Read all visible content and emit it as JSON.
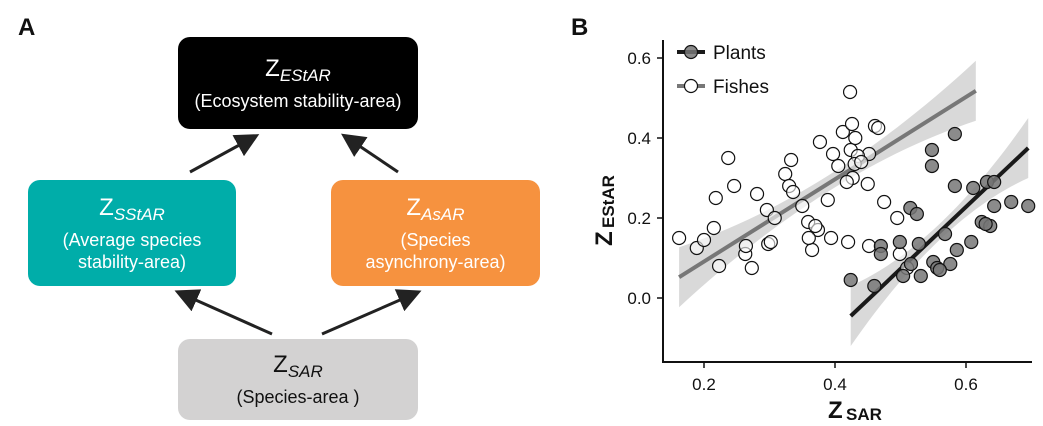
{
  "panels": {
    "a": "A",
    "b": "B"
  },
  "diagram": {
    "ecosystem": {
      "z": "Z",
      "sub": "EStAR",
      "desc": "(Ecosystem stability-area)",
      "color": "#000000"
    },
    "species_stability": {
      "z": "Z",
      "sub": "SStAR",
      "desc1": "(Average species",
      "desc2": "stability-area)",
      "color": "#00ADA9"
    },
    "asynchrony": {
      "z": "Z",
      "sub": "AsAR",
      "desc1": "(Species",
      "desc2": "asynchrony-area)",
      "color": "#F6923F"
    },
    "species_area": {
      "z": "Z",
      "sub": "SAR",
      "desc": "(Species-area )",
      "color": "#D3D2D2"
    }
  },
  "chart_data": {
    "type": "scatter",
    "xlabel": {
      "main": "Z",
      "sub": "SAR"
    },
    "ylabel": {
      "main": "Z",
      "sub": "EStAR"
    },
    "xlim": [
      0.16,
      0.72
    ],
    "ylim": [
      -0.15,
      0.65
    ],
    "xticks": [
      "0.2",
      "0.4",
      "0.6"
    ],
    "xtick_values": [
      0.2,
      0.4,
      0.6
    ],
    "yticks": [
      "0.0",
      "0.2",
      "0.4",
      "0.6"
    ],
    "ytick_values": [
      0.0,
      0.2,
      0.4,
      0.6
    ],
    "grid": false,
    "legend_position": "top-left",
    "series": [
      {
        "name": "Plants",
        "marker": "filled",
        "fill": "#777777",
        "line_color": "#1a1a1a",
        "fit": [
          [
            0.424,
            -0.045
          ],
          [
            0.695,
            0.375
          ]
        ],
        "points": [
          [
            0.583,
            0.41
          ],
          [
            0.548,
            0.37
          ],
          [
            0.548,
            0.33
          ],
          [
            0.583,
            0.28
          ],
          [
            0.611,
            0.275
          ],
          [
            0.632,
            0.29
          ],
          [
            0.643,
            0.29
          ],
          [
            0.643,
            0.23
          ],
          [
            0.669,
            0.24
          ],
          [
            0.695,
            0.23
          ],
          [
            0.624,
            0.19
          ],
          [
            0.637,
            0.18
          ],
          [
            0.63,
            0.185
          ],
          [
            0.515,
            0.225
          ],
          [
            0.525,
            0.21
          ],
          [
            0.47,
            0.13
          ],
          [
            0.47,
            0.11
          ],
          [
            0.499,
            0.14
          ],
          [
            0.528,
            0.135
          ],
          [
            0.608,
            0.14
          ],
          [
            0.586,
            0.12
          ],
          [
            0.576,
            0.085
          ],
          [
            0.55,
            0.09
          ],
          [
            0.556,
            0.075
          ],
          [
            0.56,
            0.07
          ],
          [
            0.516,
            0.085
          ],
          [
            0.504,
            0.055
          ],
          [
            0.531,
            0.055
          ],
          [
            0.424,
            0.045
          ],
          [
            0.46,
            0.03
          ],
          [
            0.568,
            0.16
          ]
        ]
      },
      {
        "name": "Fishes",
        "marker": "open",
        "fill": "#ffffff",
        "line_color": "#777777",
        "fit": [
          [
            0.162,
            0.052
          ],
          [
            0.615,
            0.518
          ]
        ],
        "points": [
          [
            0.162,
            0.15
          ],
          [
            0.189,
            0.125
          ],
          [
            0.2,
            0.145
          ],
          [
            0.215,
            0.175
          ],
          [
            0.237,
            0.35
          ],
          [
            0.246,
            0.28
          ],
          [
            0.218,
            0.25
          ],
          [
            0.223,
            0.08
          ],
          [
            0.263,
            0.11
          ],
          [
            0.264,
            0.13
          ],
          [
            0.273,
            0.075
          ],
          [
            0.281,
            0.26
          ],
          [
            0.298,
            0.135
          ],
          [
            0.302,
            0.14
          ],
          [
            0.296,
            0.22
          ],
          [
            0.308,
            0.2
          ],
          [
            0.324,
            0.31
          ],
          [
            0.33,
            0.28
          ],
          [
            0.333,
            0.345
          ],
          [
            0.336,
            0.265
          ],
          [
            0.359,
            0.19
          ],
          [
            0.377,
            0.39
          ],
          [
            0.365,
            0.12
          ],
          [
            0.394,
            0.15
          ],
          [
            0.397,
            0.36
          ],
          [
            0.412,
            0.415
          ],
          [
            0.426,
            0.435
          ],
          [
            0.424,
            0.37
          ],
          [
            0.427,
            0.3
          ],
          [
            0.374,
            0.17
          ],
          [
            0.389,
            0.245
          ],
          [
            0.405,
            0.33
          ],
          [
            0.452,
            0.36
          ],
          [
            0.431,
            0.4
          ],
          [
            0.435,
            0.355
          ],
          [
            0.418,
            0.29
          ],
          [
            0.461,
            0.43
          ],
          [
            0.466,
            0.425
          ],
          [
            0.452,
            0.13
          ],
          [
            0.475,
            0.24
          ],
          [
            0.495,
            0.2
          ],
          [
            0.499,
            0.11
          ],
          [
            0.51,
            0.075
          ],
          [
            0.423,
            0.515
          ],
          [
            0.43,
            0.335
          ],
          [
            0.44,
            0.34
          ],
          [
            0.45,
            0.285
          ],
          [
            0.37,
            0.18
          ],
          [
            0.42,
            0.14
          ],
          [
            0.36,
            0.15
          ],
          [
            0.35,
            0.23
          ]
        ]
      }
    ]
  }
}
